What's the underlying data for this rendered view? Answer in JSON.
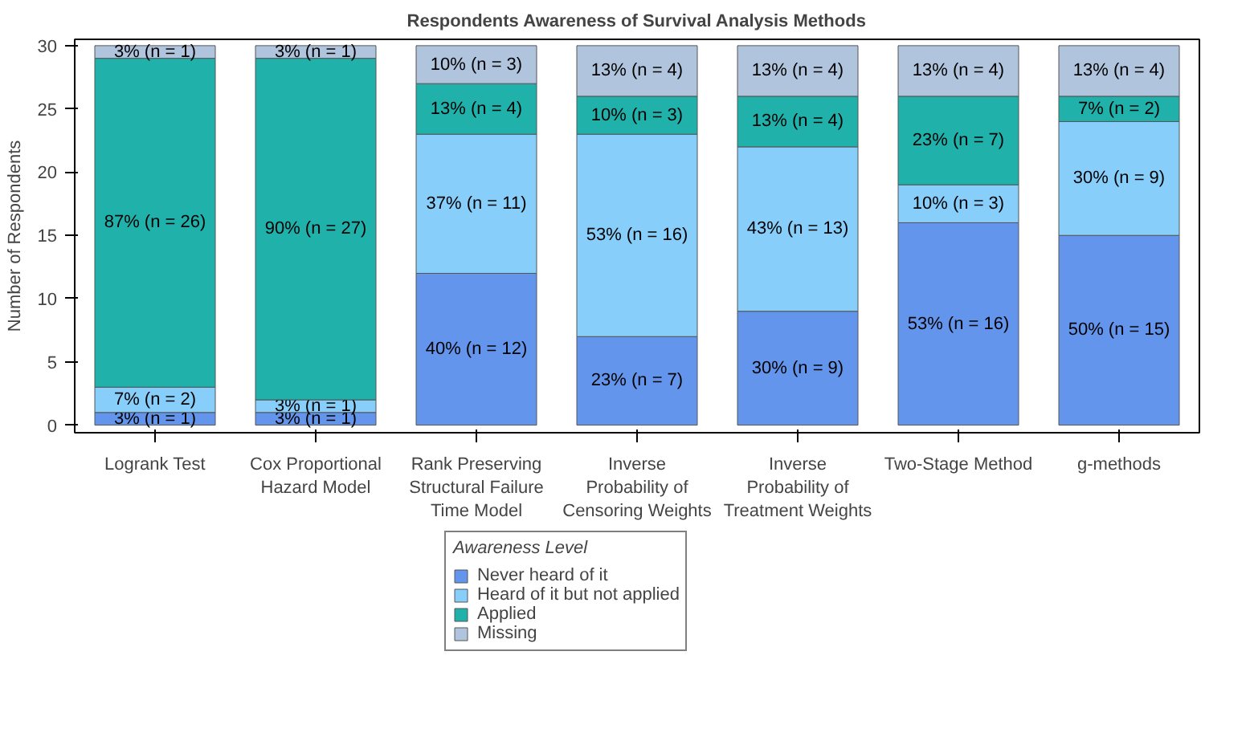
{
  "chart_data": {
    "type": "bar",
    "title": "Respondents Awareness of Survival Analysis Methods",
    "ylabel": "Number of Respondents",
    "legend_title": "Awareness Level",
    "categories": [
      "Logrank Test",
      "Cox Proportional Hazard Model",
      "Rank Preserving Structural Failure Time Model",
      "Inverse Probability of Censoring Weights",
      "Inverse Probability of Treatment Weights",
      "Two-Stage Method",
      "g-methods"
    ],
    "stacked": true,
    "ylim": [
      -0.6,
      30.5
    ],
    "yticks": [
      0,
      5,
      10,
      15,
      20,
      25,
      30
    ],
    "grid": false,
    "legend": "bottom",
    "series": [
      {
        "name": "Never heard of it",
        "color": "#6495ed",
        "values": [
          1,
          1,
          12,
          7,
          9,
          16,
          15
        ],
        "value_labels": [
          "3% (n = 1)",
          "3% (n = 1)",
          "40% (n = 12)",
          "23% (n = 7)",
          "30% (n = 9)",
          "53% (n = 16)",
          "50% (n = 15)"
        ]
      },
      {
        "name": "Heard of it but not applied",
        "color": "#87cefa",
        "values": [
          2,
          1,
          11,
          16,
          13,
          3,
          9
        ],
        "value_labels": [
          "7% (n = 2)",
          "3% (n = 1)",
          "37% (n = 11)",
          "53% (n = 16)",
          "43% (n = 13)",
          "10% (n = 3)",
          "30% (n = 9)"
        ]
      },
      {
        "name": "Applied",
        "color": "#20b2aa",
        "values": [
          26,
          27,
          4,
          3,
          4,
          7,
          2
        ],
        "value_labels": [
          "87% (n = 26)",
          "90% (n = 27)",
          "13% (n = 4)",
          "10% (n = 3)",
          "13% (n = 4)",
          "23% (n = 7)",
          "7% (n = 2)"
        ]
      },
      {
        "name": "Missing",
        "color": "#b0c4de",
        "values": [
          1,
          1,
          3,
          4,
          4,
          4,
          4
        ],
        "value_labels": [
          "3% (n = 1)",
          "3% (n = 1)",
          "10% (n = 3)",
          "13% (n = 4)",
          "13% (n = 4)",
          "13% (n = 4)",
          "13% (n = 4)"
        ]
      }
    ]
  }
}
